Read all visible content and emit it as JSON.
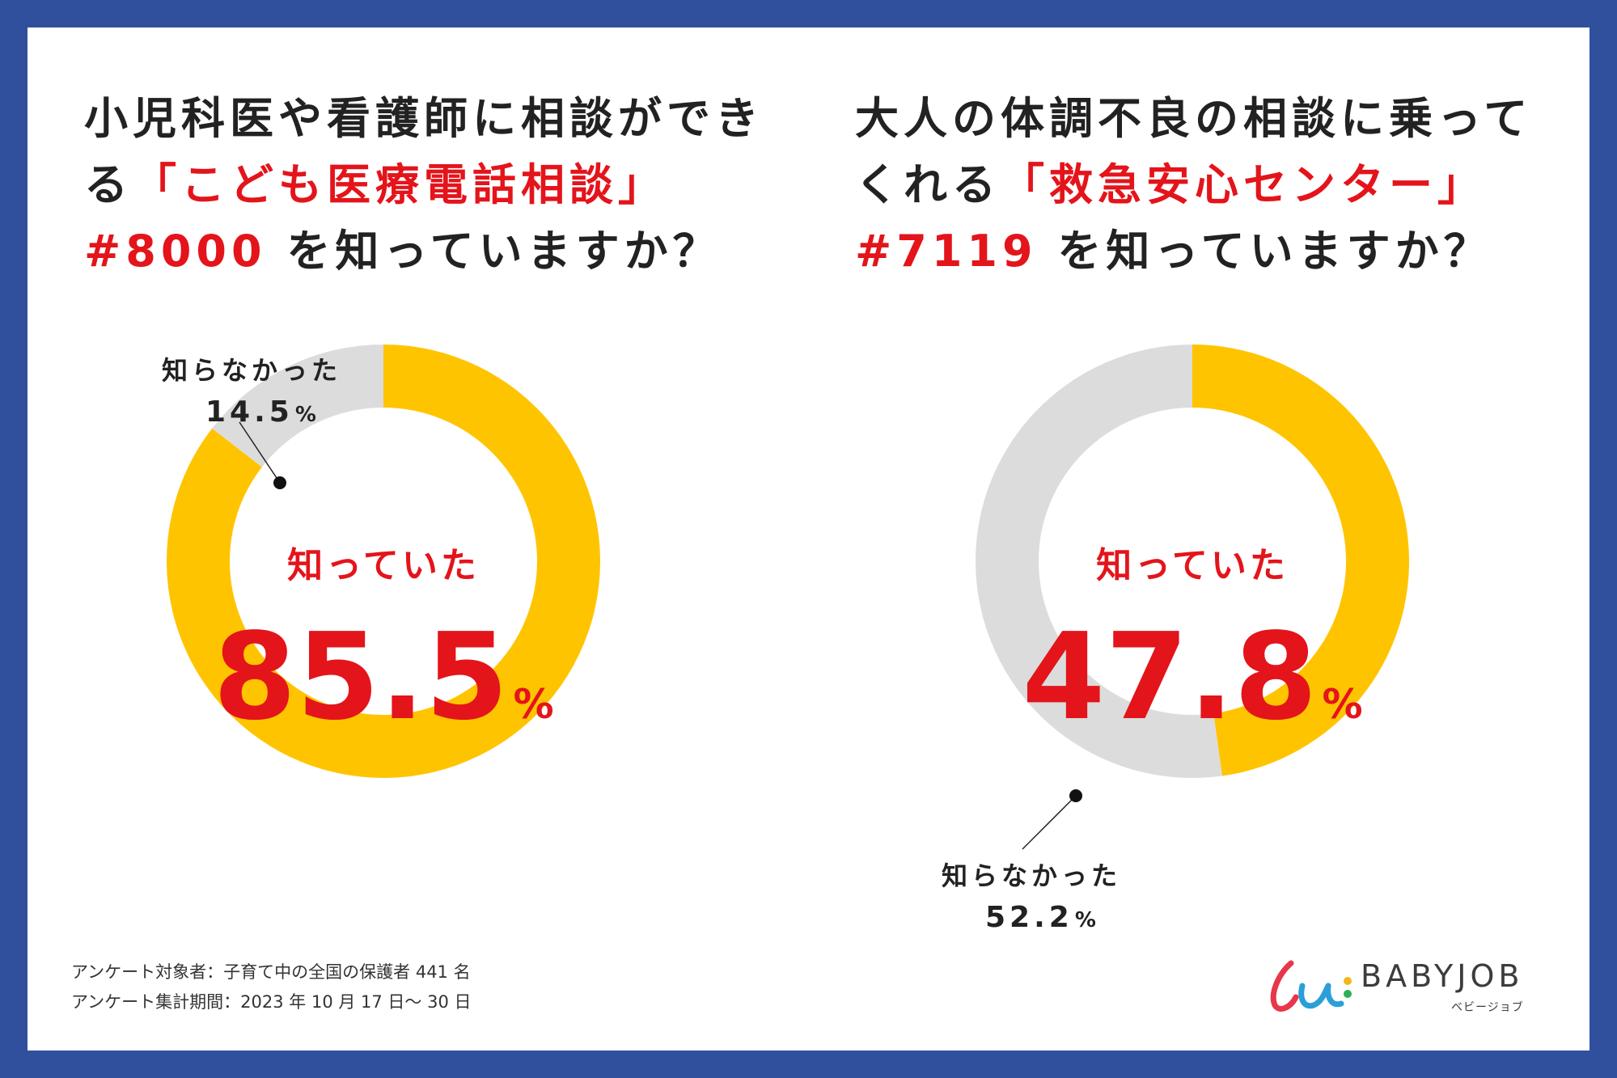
{
  "colors": {
    "frame": "#30509e",
    "knew": "#ffc400",
    "unknown": "#dcdcdc",
    "accent": "#e4141b",
    "text": "#222222"
  },
  "questions": [
    {
      "title_lines": [
        [
          {
            "text": "小児科医や看護師に相談ができ"
          }
        ],
        [
          {
            "text": "る"
          },
          {
            "text": "「こども医療電話相談」",
            "red": true
          }
        ],
        [
          {
            "text": "#8000",
            "red": true
          },
          {
            "text": " を知っていますか？"
          }
        ]
      ],
      "knew_label": "知っていた",
      "knew_pct": "85.5",
      "unknown_label": "知らなかった",
      "unknown_pct": "14.5",
      "pct_unit": "%"
    },
    {
      "title_lines": [
        [
          {
            "text": "大人の体調不良の相談に乗って"
          }
        ],
        [
          {
            "text": "くれる"
          },
          {
            "text": "「救急安心センター」",
            "red": true
          }
        ],
        [
          {
            "text": "#7119",
            "red": true
          },
          {
            "text": " を知っていますか？"
          }
        ]
      ],
      "knew_label": "知っていた",
      "knew_pct": "47.8",
      "unknown_label": "知らなかった",
      "unknown_pct": "52.2",
      "pct_unit": "%"
    }
  ],
  "chart_data": [
    {
      "type": "pie",
      "title": "小児科医や看護師に相談ができる「こども医療電話相談」#8000 を知っていますか？",
      "categories": [
        "知っていた",
        "知らなかった"
      ],
      "values": [
        85.5,
        14.5
      ],
      "colors": [
        "#ffc400",
        "#dcdcdc"
      ]
    },
    {
      "type": "pie",
      "title": "大人の体調不良の相談に乗ってくれる「救急安心センター」#7119 を知っていますか？",
      "categories": [
        "知っていた",
        "知らなかった"
      ],
      "values": [
        47.8,
        52.2
      ],
      "colors": [
        "#ffc400",
        "#dcdcdc"
      ]
    }
  ],
  "footer": {
    "line1": "アンケート対象者：子育て中の全国の保護者 441 名",
    "line2": "アンケート集計期間：2023 年 10 月 17 日〜 30 日"
  },
  "brand": {
    "name": "BABYJOB",
    "sub": "ベビージョブ"
  }
}
